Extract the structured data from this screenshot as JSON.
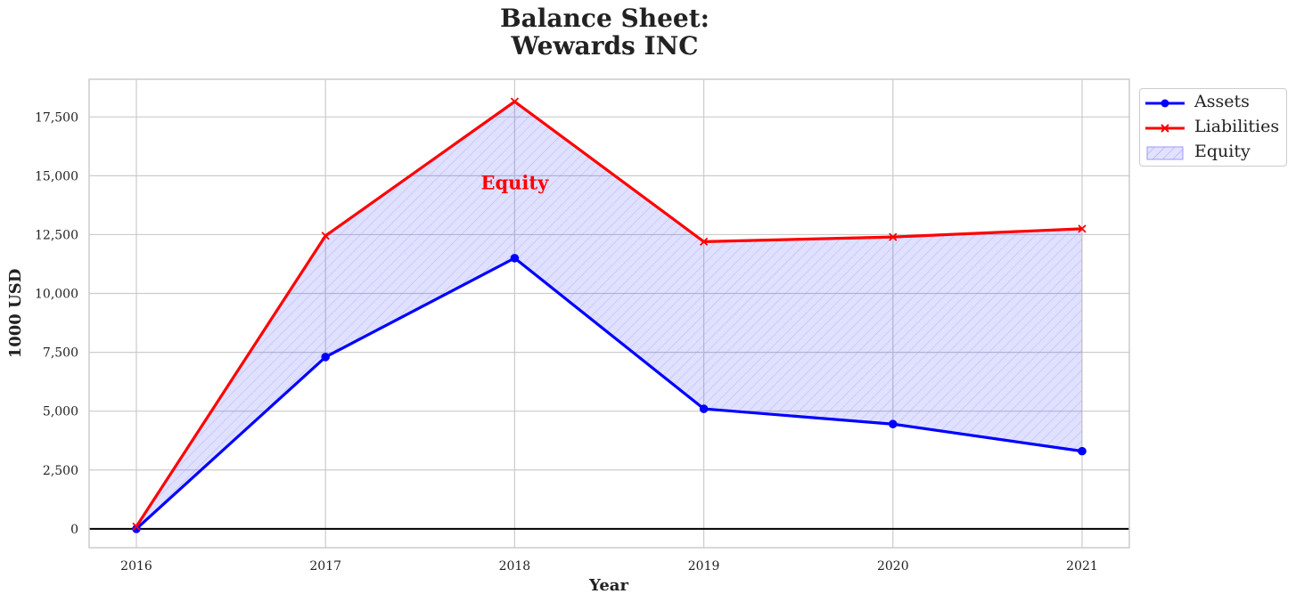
{
  "chart_data": {
    "type": "line",
    "title": "Balance Sheet:",
    "subtitle": "Wewards INC",
    "xlabel": "Year",
    "ylabel": "1000 USD",
    "x": [
      2016,
      2017,
      2018,
      2019,
      2020,
      2021
    ],
    "x_tick_labels": [
      "2016",
      "2017",
      "2018",
      "2019",
      "2020",
      "2021"
    ],
    "ylim": [
      -800,
      19100
    ],
    "y_ticks": [
      0,
      2500,
      5000,
      7500,
      10000,
      12500,
      15000,
      17500
    ],
    "y_tick_labels": [
      "0",
      "2,500",
      "5,000",
      "7,500",
      "10,000",
      "12,500",
      "15,000",
      "17,500"
    ],
    "grid": true,
    "legend_position": "outside top-right",
    "series": [
      {
        "name": "Assets",
        "values": [
          0,
          7300,
          11500,
          5100,
          4450,
          3300
        ],
        "color": "#0000ff",
        "marker": "circle"
      },
      {
        "name": "Liabilities",
        "values": [
          100,
          12450,
          18150,
          12200,
          12400,
          12750
        ],
        "color": "#ff0000",
        "marker": "x"
      }
    ],
    "fill_between": {
      "name": "Equity",
      "between": [
        "Assets",
        "Liabilities"
      ],
      "color": "#0000ff",
      "pattern": "hatched"
    },
    "annotations": [
      {
        "text": "Equity",
        "x": 2018,
        "y": 14700,
        "color": "#ff0000"
      }
    ],
    "zero_line": true
  }
}
